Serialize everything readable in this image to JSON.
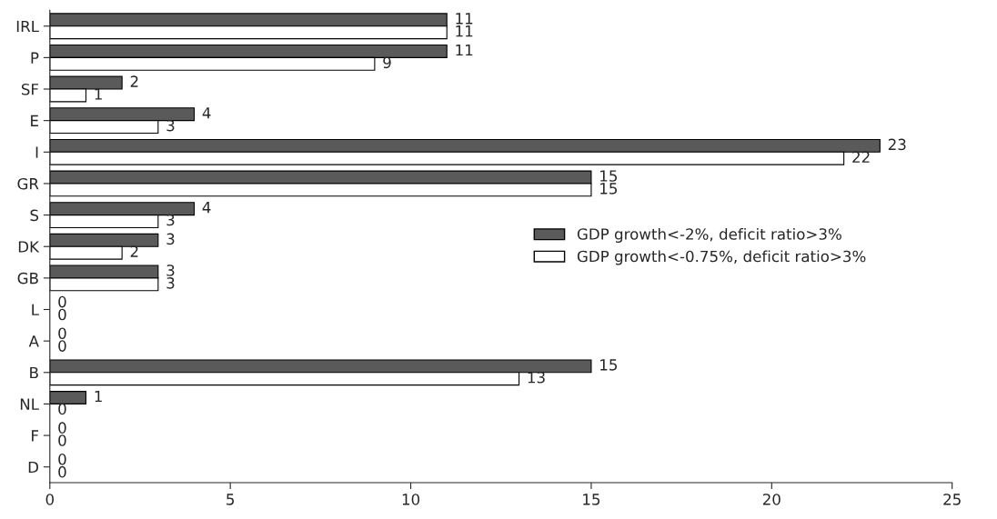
{
  "chart_data": {
    "type": "bar",
    "orientation": "horizontal",
    "categories": [
      "IRL",
      "P",
      "SF",
      "E",
      "I",
      "GR",
      "S",
      "DK",
      "GB",
      "L",
      "A",
      "B",
      "NL",
      "F",
      "D"
    ],
    "series": [
      {
        "name": "GDP growth<-2%, deficit ratio>3%",
        "color": "#5a5a5a",
        "values": [
          11,
          11,
          2,
          4,
          23,
          15,
          4,
          3,
          3,
          0,
          0,
          15,
          1,
          0,
          0
        ]
      },
      {
        "name": "GDP growth<-0.75%, deficit ratio>3%",
        "color": "#ffffff",
        "values": [
          11,
          9,
          1,
          3,
          22,
          15,
          3,
          2,
          3,
          0,
          0,
          13,
          0,
          0,
          0
        ]
      }
    ],
    "xlim": [
      0,
      25
    ],
    "xticks": [
      0,
      5,
      10,
      15,
      20,
      25
    ],
    "data_labels": true,
    "legend": "right",
    "grid": false
  }
}
